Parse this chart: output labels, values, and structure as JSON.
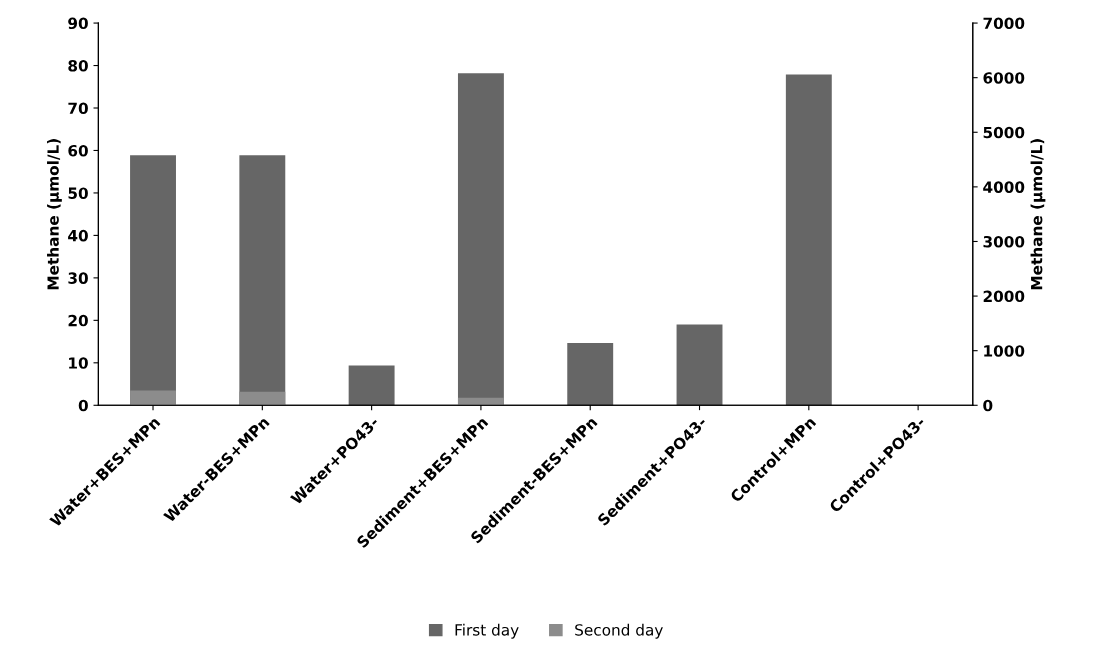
{
  "chart_data": {
    "type": "bar",
    "ylabel": "Methane (µmol/L)",
    "y2label": "Methane (µmol/L)",
    "categories": [
      "Water+BES+MPn",
      "Water-BES+MPn",
      "Water+PO43-",
      "Sediment+BES+MPn",
      "Sediment-BES+MPn",
      "Sediment+PO43-",
      "Control+MPn",
      "Control+PO43-"
    ],
    "series": [
      {
        "name": "First day",
        "color": "#666666",
        "axis": "y2",
        "values": [
          4580,
          4580,
          730,
          6080,
          1140,
          1480,
          6060,
          null
        ]
      },
      {
        "name": "Second day",
        "color": "#8c8c8c",
        "axis": "y",
        "values": [
          3.5,
          3.2,
          0,
          1.8,
          0,
          0,
          0,
          0
        ]
      }
    ],
    "ylim": [
      0,
      90
    ],
    "yticks": [
      0,
      10,
      20,
      30,
      40,
      50,
      60,
      70,
      80,
      90
    ],
    "y2lim": [
      0,
      7000
    ],
    "y2ticks": [
      0,
      1000,
      2000,
      3000,
      4000,
      5000,
      6000,
      7000
    ],
    "grid": false,
    "legend": "bottom"
  }
}
